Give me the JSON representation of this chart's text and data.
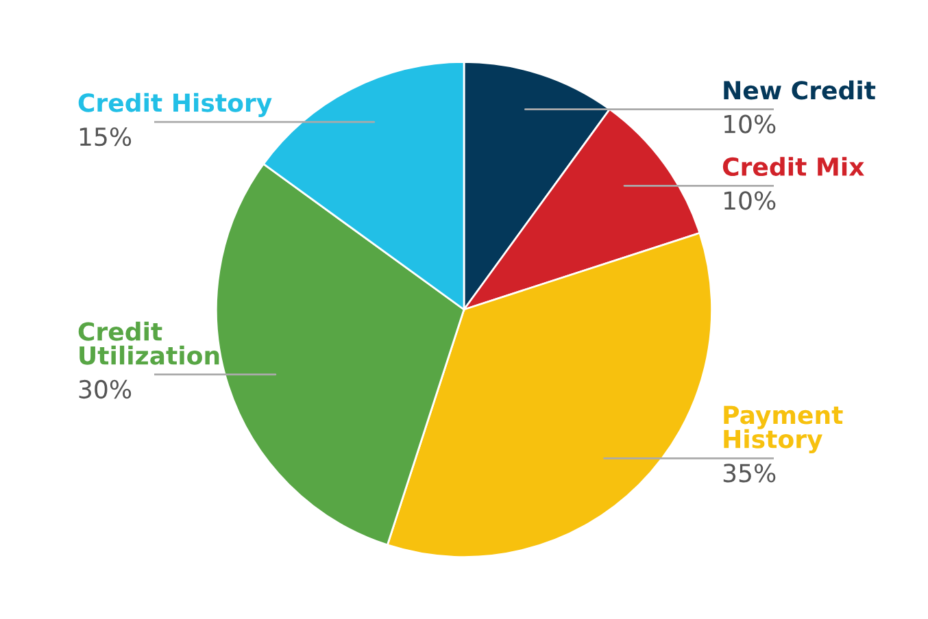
{
  "chart_data": {
    "type": "pie",
    "categories": [
      "New Credit",
      "Credit Mix",
      "Payment\nHistory",
      "Credit\nUtilization",
      "Credit History"
    ],
    "values": [
      10,
      10,
      35,
      30,
      15
    ],
    "colors": [
      "#04385a",
      "#d12229",
      "#f7c10e",
      "#58a645",
      "#22bfe6"
    ],
    "value_labels": [
      "10%",
      "10%",
      "35%",
      "30%",
      "15%"
    ]
  }
}
